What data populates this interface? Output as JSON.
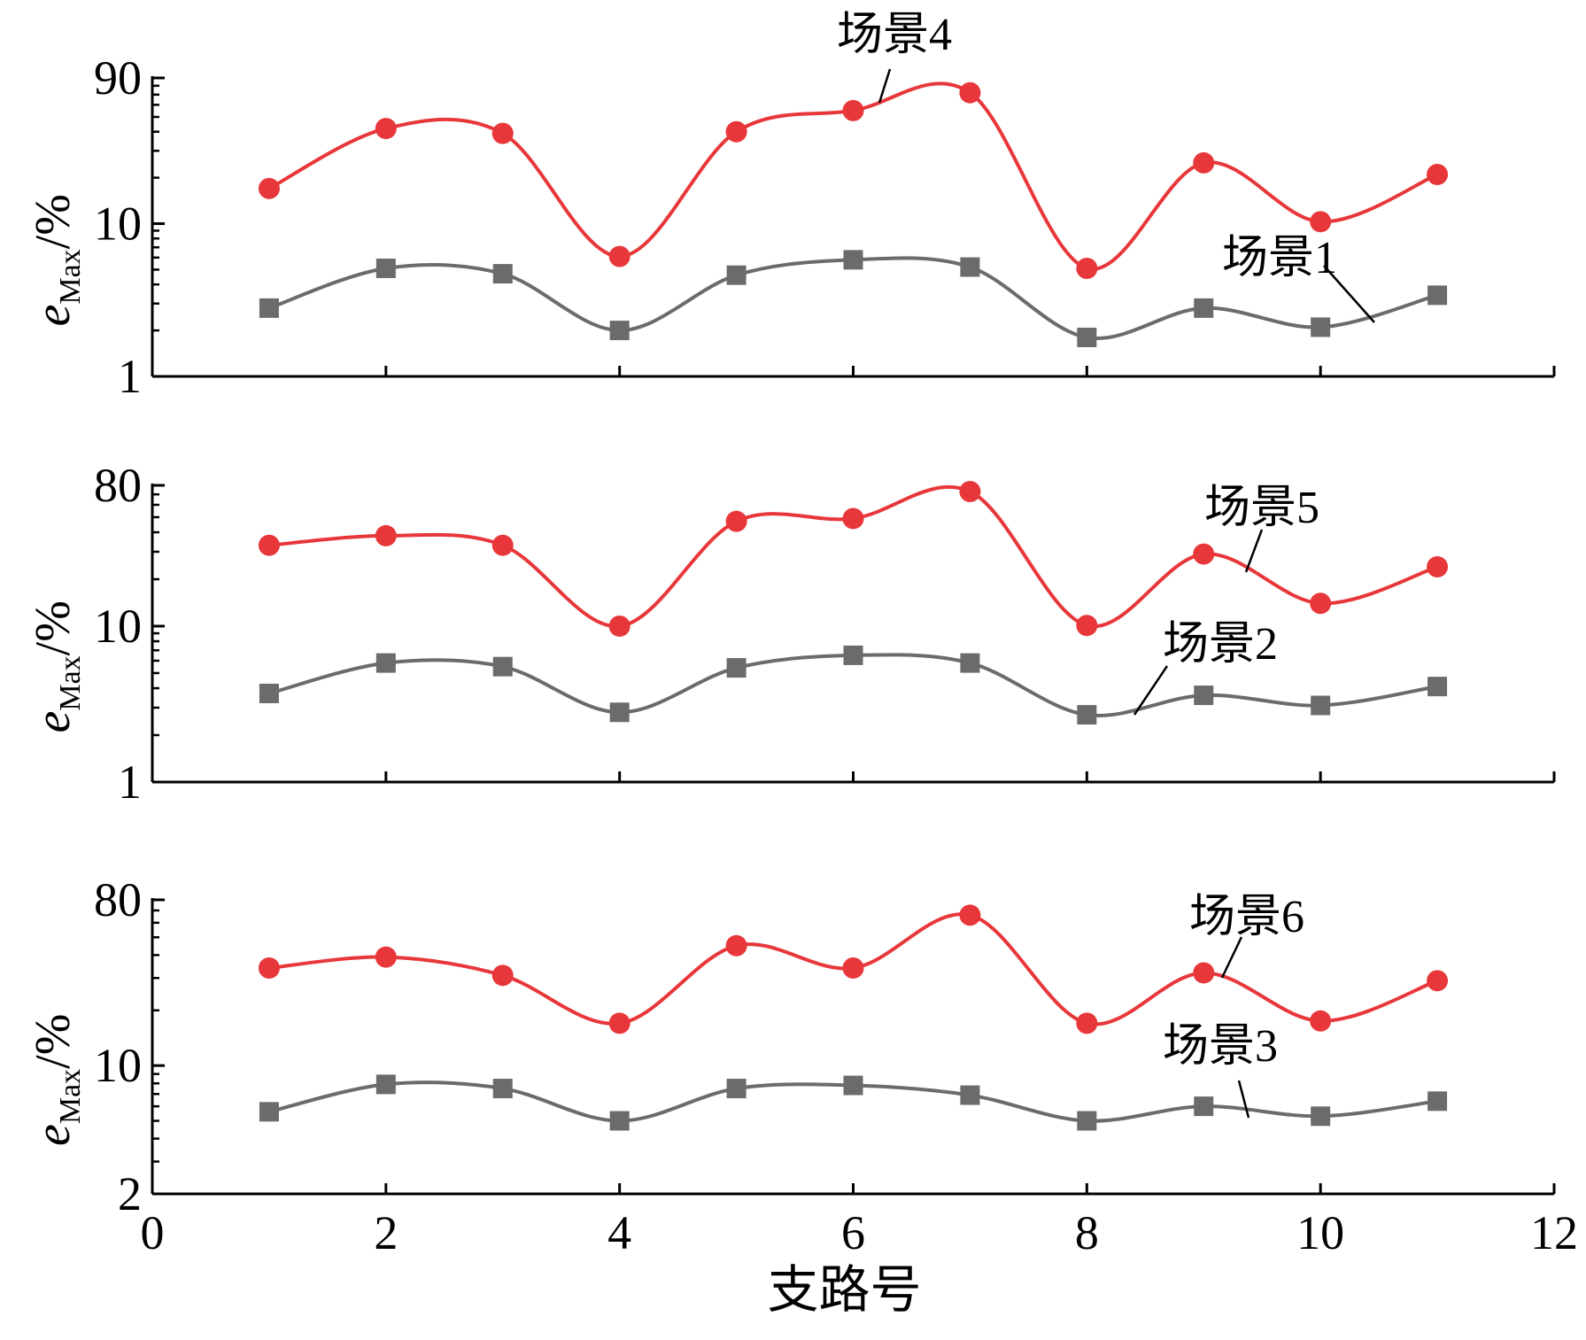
{
  "chart_data": [
    {
      "type": "line",
      "yscale": "log",
      "ylim": [
        1,
        90
      ],
      "xlim": [
        0,
        12
      ],
      "yticks": [
        "1",
        "10",
        "90"
      ],
      "ylabel": {
        "main": "e",
        "sub": "Max",
        "suffix": "/%"
      },
      "x": [
        1,
        2,
        3,
        4,
        5,
        6,
        7,
        8,
        9,
        10,
        11
      ],
      "series": [
        {
          "name": "场景4",
          "color": "#e8373a",
          "marker": "circle",
          "values": [
            17,
            42,
            39,
            6.1,
            40,
            55,
            72,
            5.1,
            25,
            10.3,
            21
          ]
        },
        {
          "name": "场景1",
          "color": "#6b6b6b",
          "marker": "square",
          "values": [
            2.8,
            5.1,
            4.7,
            2.0,
            4.6,
            5.8,
            5.2,
            1.8,
            2.8,
            2.1,
            3.4
          ]
        }
      ],
      "annotations": [
        {
          "text": "场景4",
          "series": 0
        },
        {
          "text": "场景1",
          "series": 1
        }
      ]
    },
    {
      "type": "line",
      "yscale": "log",
      "ylim": [
        1,
        80
      ],
      "xlim": [
        0,
        12
      ],
      "yticks": [
        "1",
        "10",
        "80"
      ],
      "ylabel": {
        "main": "e",
        "sub": "Max",
        "suffix": "/%"
      },
      "x": [
        1,
        2,
        3,
        4,
        5,
        6,
        7,
        8,
        9,
        10,
        11
      ],
      "series": [
        {
          "name": "场景5",
          "color": "#e8373a",
          "marker": "circle",
          "values": [
            33,
            38,
            33,
            10,
            47,
            49,
            73,
            10.1,
            29,
            14,
            24
          ]
        },
        {
          "name": "场景2",
          "color": "#6b6b6b",
          "marker": "square",
          "values": [
            3.7,
            5.8,
            5.5,
            2.8,
            5.4,
            6.5,
            5.8,
            2.7,
            3.6,
            3.1,
            4.1
          ]
        }
      ],
      "annotations": [
        {
          "text": "场景5",
          "series": 0
        },
        {
          "text": "场景2",
          "series": 1
        }
      ]
    },
    {
      "type": "line",
      "yscale": "log",
      "ylim": [
        2,
        80
      ],
      "xlim": [
        0,
        12
      ],
      "yticks": [
        "2",
        "10",
        "80"
      ],
      "xticks": [
        "0",
        "2",
        "4",
        "6",
        "8",
        "10",
        "12"
      ],
      "xlabel": "支路号",
      "ylabel": {
        "main": "e",
        "sub": "Max",
        "suffix": "/%"
      },
      "x": [
        1,
        2,
        3,
        4,
        5,
        6,
        7,
        8,
        9,
        10,
        11
      ],
      "series": [
        {
          "name": "场景6",
          "color": "#e8373a",
          "marker": "circle",
          "values": [
            34,
            39,
            31,
            17,
            45,
            34,
            66,
            17,
            32,
            17.5,
            29
          ]
        },
        {
          "name": "场景3",
          "color": "#6b6b6b",
          "marker": "square",
          "values": [
            5.6,
            7.9,
            7.5,
            5.0,
            7.5,
            7.8,
            6.9,
            5.0,
            6.0,
            5.3,
            6.4
          ]
        }
      ],
      "annotations": [
        {
          "text": "场景6",
          "series": 0
        },
        {
          "text": "场景3",
          "series": 1
        }
      ]
    }
  ]
}
